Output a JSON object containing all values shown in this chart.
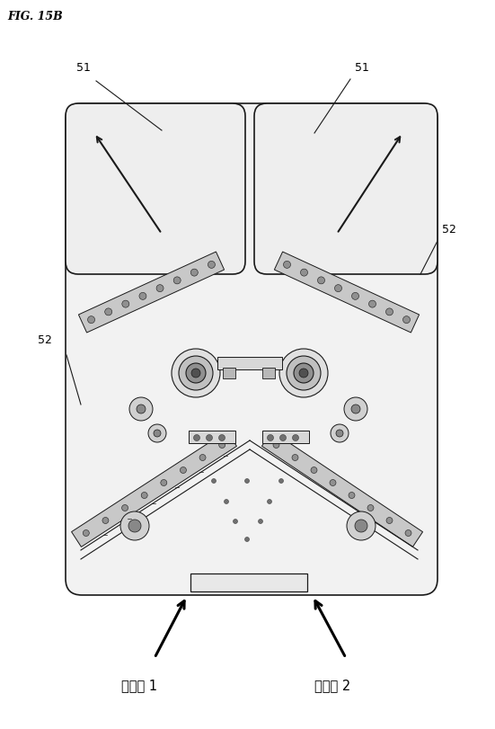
{
  "title": "FIG. 15B",
  "bg_color": "#ffffff",
  "lc": "#1a1a1a",
  "fill_outer": "#f5f5f5",
  "fill_upper": "#f0f0f0",
  "fill_arm": "#c8c8c8",
  "fill_arm_dark": "#a0a0a0",
  "fill_circle_outer": "#d8d8d8",
  "fill_circle_mid": "#b0b0b0",
  "fill_circle_inner": "#707070",
  "lane1_label": "レーン 1",
  "lane2_label": "レーン 2"
}
